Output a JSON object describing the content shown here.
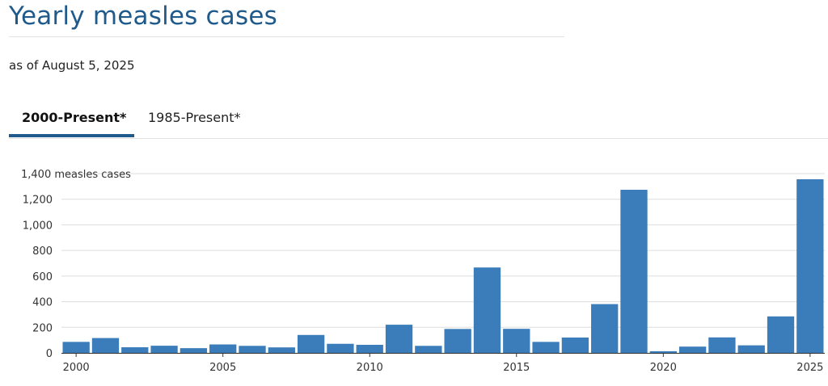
{
  "header": {
    "title": "Yearly measles cases",
    "subtitle": "as of August 5, 2025"
  },
  "tabs": [
    {
      "label": "2000-Present*",
      "active": true
    },
    {
      "label": "1985-Present*",
      "active": false
    }
  ],
  "colors": {
    "bar": "#3a7dba",
    "accent": "#1f5a8b",
    "grid": "#dddddd"
  },
  "chart_data": {
    "type": "bar",
    "title": "",
    "xlabel": "",
    "ylabel": "measles cases",
    "ylabel_suffix": " measles cases",
    "ylim": [
      0,
      1400
    ],
    "yticks": [
      0,
      200,
      400,
      600,
      800,
      1000,
      1200,
      1400
    ],
    "ytick_labels": [
      "0",
      "200",
      "400",
      "600",
      "800",
      "1,000",
      "1,200",
      "1,400"
    ],
    "xtick_labels": [
      "2000",
      "2005",
      "2010",
      "2015",
      "2020",
      "2025"
    ],
    "grid": true,
    "categories": [
      "2000",
      "2001",
      "2002",
      "2003",
      "2004",
      "2005",
      "2006",
      "2007",
      "2008",
      "2009",
      "2010",
      "2011",
      "2012",
      "2013",
      "2014",
      "2015",
      "2016",
      "2017",
      "2018",
      "2019",
      "2020",
      "2021",
      "2022",
      "2023",
      "2024",
      "2025"
    ],
    "values": [
      86,
      116,
      44,
      56,
      37,
      66,
      55,
      43,
      140,
      71,
      63,
      220,
      55,
      187,
      667,
      188,
      86,
      120,
      381,
      1274,
      13,
      49,
      121,
      59,
      285,
      1356
    ]
  }
}
